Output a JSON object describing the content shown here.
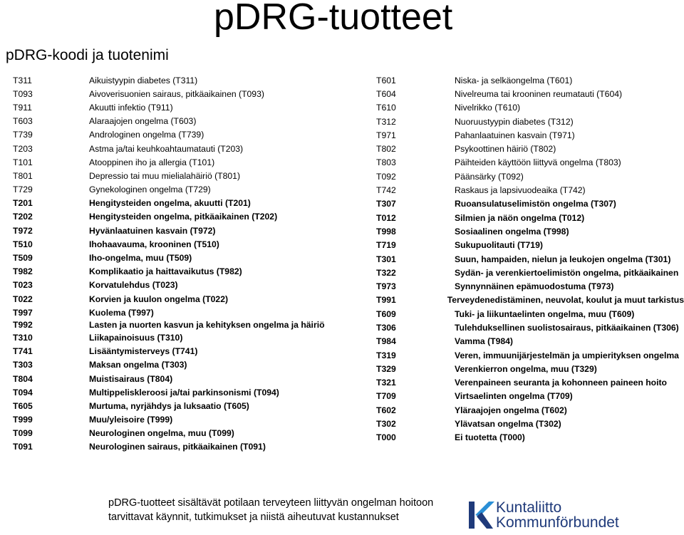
{
  "title": "pDRG-tuotteet",
  "subtitle": "pDRG-koodi ja tuotenimi",
  "left_items": [
    {
      "code": "T311",
      "name": "Aikuistyypin diabetes (T311)"
    },
    {
      "code": "T093",
      "name": "Aivoverisuonien sairaus, pitkäaikainen (T093)"
    },
    {
      "code": "T911",
      "name": "Akuutti infektio (T911)"
    },
    {
      "code": "T603",
      "name": "Alaraajojen ongelma (T603)"
    },
    {
      "code": "T739",
      "name": "Androloginen ongelma (T739)"
    },
    {
      "code": "T203",
      "name": "Astma ja/tai keuhkoahtaumatauti (T203)"
    },
    {
      "code": "T101",
      "name": "Atooppinen iho ja allergia (T101)"
    },
    {
      "code": "T801",
      "name": "Depressio tai muu mielialahäiriö (T801)"
    },
    {
      "code": "T729",
      "name": "Gynekologinen ongelma (T729)"
    },
    {
      "code": "T201",
      "name": "Hengitysteiden ongelma, akuutti (T201)"
    },
    {
      "code": "T202",
      "name": "Hengitysteiden ongelma, pitkäaikainen (T202)"
    },
    {
      "code": "T972",
      "name": "Hyvänlaatuinen kasvain (T972)"
    },
    {
      "code": "T510",
      "name": "Ihohaavauma, krooninen (T510)"
    },
    {
      "code": "T509",
      "name": "Iho-ongelma, muu (T509)"
    },
    {
      "code": "T982",
      "name": "Komplikaatio ja haittavaikutus (T982)"
    },
    {
      "code": "T023",
      "name": "Korvatulehdus (T023)"
    },
    {
      "code": "T022",
      "name": "Korvien ja kuulon ongelma (T022)"
    },
    {
      "code": "T997",
      "name": "Kuolema (T997)"
    },
    {
      "code": "T992",
      "name": "Lasten ja nuorten kasvun ja kehityksen ongelma ja  häiriö"
    },
    {
      "code": "T310",
      "name": "Liikapainoisuus (T310)"
    },
    {
      "code": "T741",
      "name": "Lisääntymisterveys (T741)"
    },
    {
      "code": "T303",
      "name": "Maksan ongelma (T303)"
    },
    {
      "code": "T804",
      "name": "Muistisairaus (T804)"
    },
    {
      "code": "T094",
      "name": "Multippeliskleroosi ja/tai parkinsonismi (T094)"
    },
    {
      "code": "T605",
      "name": "Murtuma, nyrjähdys ja luksaatio (T605)"
    },
    {
      "code": "T999",
      "name": "Muu/yleisoire (T999)"
    },
    {
      "code": "T099",
      "name": "Neurologinen ongelma, muu (T099)"
    },
    {
      "code": "T091",
      "name": "Neurologinen sairaus, pitkäaikainen (T091)"
    }
  ],
  "right_items": [
    {
      "code": "T601",
      "name": "Niska- ja selkäongelma (T601)"
    },
    {
      "code": "T604",
      "name": "Nivelreuma tai krooninen reumatauti (T604)"
    },
    {
      "code": "T610",
      "name": "Nivelrikko (T610)"
    },
    {
      "code": "T312",
      "name": "Nuoruustyypin diabetes (T312)"
    },
    {
      "code": "T971",
      "name": "Pahanlaatuinen kasvain (T971)"
    },
    {
      "code": "T802",
      "name": "Psykoottinen häiriö (T802)"
    },
    {
      "code": "T803",
      "name": "Päihteiden käyttöön liittyvä ongelma (T803)"
    },
    {
      "code": "T092",
      "name": "Päänsärky (T092)"
    },
    {
      "code": "T742",
      "name": "Raskaus ja lapsivuodeaika (T742)"
    },
    {
      "code": "T307",
      "name": "Ruoansulatuselimistön ongelma (T307)"
    },
    {
      "code": "T012",
      "name": "Silmien ja näön ongelma (T012)"
    },
    {
      "code": "T998",
      "name": "Sosiaalinen ongelma (T998)"
    },
    {
      "code": "T719",
      "name": "Sukupuolitauti (T719)"
    },
    {
      "code": "T301",
      "name": "Suun, hampaiden, nielun ja leukojen ongelma (T301)"
    },
    {
      "code": "T322",
      "name": "Sydän- ja verenkiertoelimistön ongelma, pitkäaikainen"
    },
    {
      "code": "T973",
      "name": "Synnynnäinen epämuodostuma (T973)"
    },
    {
      "code": "T991",
      "name": "Terveydenedistäminen, neuvolat, koulut ja muut tarkistus"
    },
    {
      "code": "T609",
      "name": "Tuki- ja liikuntaelinten ongelma, muu (T609)"
    },
    {
      "code": "T306",
      "name": "Tulehduksellinen suolistosairaus, pitkäaikainen (T306)"
    },
    {
      "code": "T984",
      "name": "Vamma (T984)"
    },
    {
      "code": "T319",
      "name": "Veren, immuunijärjestelmän ja umpierityksen ongelma"
    },
    {
      "code": "T329",
      "name": "Verenkierron ongelma, muu (T329)"
    },
    {
      "code": "T321",
      "name": "Verenpaineen seuranta ja kohonneen paineen hoito"
    },
    {
      "code": "T709",
      "name": "Virtsaelinten ongelma (T709)"
    },
    {
      "code": "T602",
      "name": "Yläraajojen ongelma (T602)"
    },
    {
      "code": "T302",
      "name": "Ylävatsan ongelma (T302)"
    },
    {
      "code": "T000",
      "name": "Ei tuotetta (T000)"
    }
  ],
  "footer": {
    "line1": "pDRG-tuotteet sisältävät potilaan terveyteen liittyvän ongelman hoitoon",
    "line2": "tarvittavat käynnit, tutkimukset ja niistä aiheutuvat kustannukset"
  },
  "logo": {
    "line1": "Kuntaliitto",
    "line2": "Kommunförbundet",
    "colors": {
      "navy": "#1f3a7a",
      "blue": "#2a8fd6"
    }
  }
}
